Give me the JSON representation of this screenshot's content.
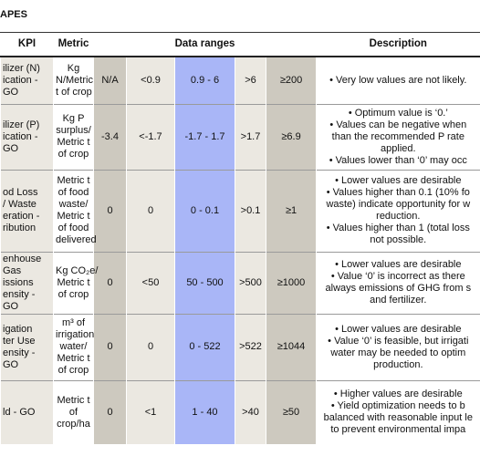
{
  "title": "APES",
  "table": {
    "header": [
      "KPI",
      "Metric",
      "Data ranges",
      "Description"
    ],
    "rows": [
      {
        "kpi": [
          "ilizer (N)",
          "ication -",
          "GO"
        ],
        "metric": [
          "Kg",
          "N/Metric",
          "t of crop"
        ],
        "ranges": [
          "N/A",
          "<0.9",
          "0.9 - 6",
          ">6",
          "≥200"
        ],
        "description": [
          [
            "• Very low values are not likely."
          ]
        ]
      },
      {
        "kpi": [
          "ilizer (P)",
          "ication -",
          "GO"
        ],
        "metric": [
          "Kg P",
          "surplus/",
          "Metric t",
          "of crop"
        ],
        "ranges": [
          "-3.4",
          "<-1.7",
          "-1.7 - 1.7",
          ">1.7",
          "≥6.9"
        ],
        "description": [
          [
            "• Optimum value is ‘0.’"
          ],
          [
            "• Values can be negative when",
            "than the recommended P rate",
            "applied."
          ],
          [
            "• Values lower than ‘0’ may occ"
          ]
        ]
      },
      {
        "kpi": [
          "od Loss",
          "/ Waste",
          "eration -",
          "ribution"
        ],
        "metric": [
          "Metric t",
          "of food",
          "waste/",
          "Metric t",
          "of food",
          "delivered"
        ],
        "ranges": [
          "0",
          "0",
          "0 - 0.1",
          ">0.1",
          "≥1"
        ],
        "description": [
          [
            "• Lower values are desirable"
          ],
          [
            "• Values higher than 0.1 (10% fo",
            "waste) indicate opportunity for w",
            "reduction."
          ],
          [
            "• Values higher than 1 (total loss",
            "not possible."
          ]
        ]
      },
      {
        "kpi": [
          "enhouse",
          "Gas",
          "issions",
          "ensity -",
          "GO"
        ],
        "metric": [
          "Kg CO₂e/",
          "Metric t",
          "of crop"
        ],
        "ranges": [
          "0",
          "<50",
          "50 - 500",
          ">500",
          "≥1000"
        ],
        "description": [
          [
            "• Lower values are desirable"
          ],
          [
            "• Value ‘0’ is incorrect as there",
            "always emissions of GHG from s",
            "and fertilizer."
          ]
        ]
      },
      {
        "kpi": [
          "igation",
          "ter Use",
          "ensity -",
          "GO"
        ],
        "metric": [
          "m³ of",
          "irrigation",
          "water/",
          "Metric t",
          "of crop"
        ],
        "ranges": [
          "0",
          "0",
          "0 - 522",
          ">522",
          "≥1044"
        ],
        "description": [
          [
            "• Lower values are desirable"
          ],
          [
            "• Value ‘0’ is feasible, but irrigati",
            "water may be needed to optim",
            "production."
          ]
        ]
      },
      {
        "kpi": [
          "ld - GO"
        ],
        "metric": [
          "Metric t",
          "of",
          "crop/ha"
        ],
        "ranges": [
          "0",
          "<1",
          "1 - 40",
          ">40",
          "≥50"
        ],
        "description": [
          [
            "• Higher values are desirable"
          ],
          [
            "• Yield optimization needs to b",
            "balanced with reasonable input le",
            "to prevent environmental impa"
          ]
        ]
      }
    ]
  }
}
